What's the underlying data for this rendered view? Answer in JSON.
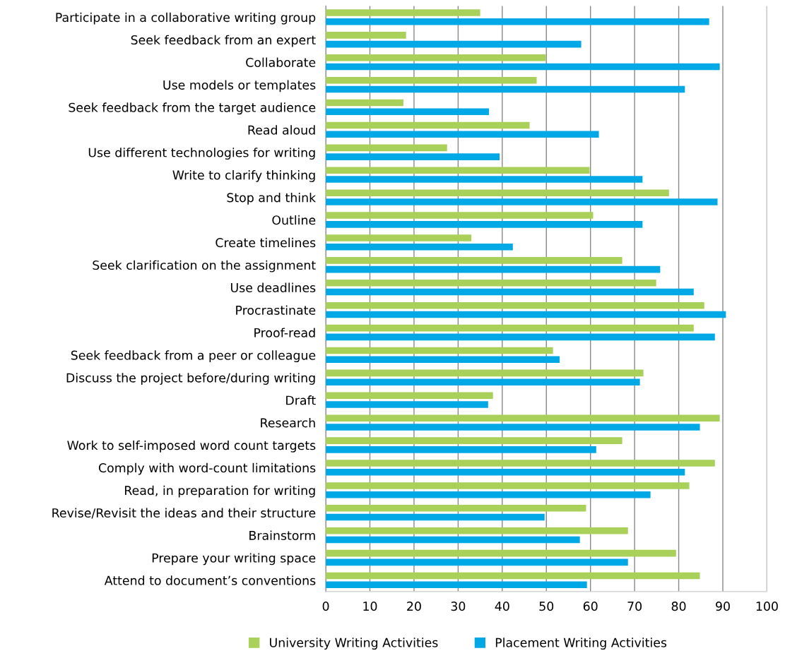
{
  "chart_data": {
    "type": "bar",
    "orientation": "horizontal",
    "categories": [
      "Participate in a collaborative writing group",
      "Seek feedback from an expert",
      "Collaborate",
      "Use models or templates",
      "Seek feedback from the target audience",
      "Read aloud",
      "Use different technologies for writing",
      "Write to clarify thinking",
      "Stop and think",
      "Outline",
      "Create timelines",
      "Seek clarification on the assignment",
      "Use deadlines",
      "Procrastinate",
      "Proof-read",
      "Seek feedback from a peer or colleague",
      "Discuss the project before/during writing",
      "Draft",
      "Research",
      "Work to self-imposed word count targets",
      "Comply with word-count limitations",
      "Read, in preparation for writing",
      "Revise/Revisit the ideas and their structure",
      "Brainstorm",
      "Prepare your writing space",
      "Attend to document’s conventions"
    ],
    "series": [
      {
        "name": "University Writing Activities",
        "color": "#a9d15a",
        "values": [
          35.0,
          18.2,
          49.9,
          47.8,
          17.6,
          46.2,
          27.5,
          59.8,
          77.8,
          60.6,
          33.0,
          67.2,
          74.9,
          85.8,
          83.4,
          51.5,
          72.0,
          37.9,
          89.3,
          67.2,
          88.2,
          82.4,
          59.0,
          68.5,
          79.4,
          84.8
        ]
      },
      {
        "name": "Placement Writing Activities",
        "color": "#00a9e6",
        "values": [
          86.9,
          57.9,
          89.3,
          81.4,
          37.0,
          61.9,
          39.4,
          71.8,
          88.8,
          71.8,
          42.4,
          75.8,
          83.4,
          90.7,
          88.2,
          53.0,
          71.2,
          36.8,
          84.8,
          61.3,
          81.4,
          73.6,
          49.6,
          57.6,
          68.5,
          59.2
        ]
      }
    ],
    "xlim": [
      0,
      100
    ],
    "xticks": [
      0,
      10,
      20,
      30,
      40,
      50,
      60,
      70,
      80,
      90,
      100
    ],
    "grid": "x",
    "legend": "bottom"
  }
}
